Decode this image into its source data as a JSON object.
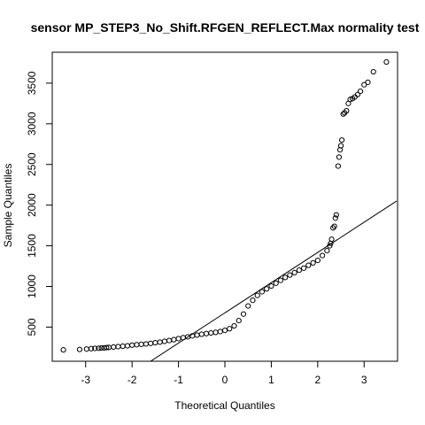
{
  "chart_data": {
    "type": "scatter",
    "title": "sensor MP_STEP3_No_Shift.RFGEN_REFLECT.Max normality test",
    "xlabel": "Theoretical Quantiles",
    "ylabel": "Sample Quantiles",
    "xlim": [
      -3.72,
      3.72
    ],
    "ylim": [
      80,
      3880
    ],
    "x_ticks": [
      -3,
      -2,
      -1,
      0,
      1,
      2,
      3
    ],
    "y_ticks": [
      500,
      1000,
      1500,
      2000,
      2500,
      3000,
      3500
    ],
    "grid": false,
    "legend": "none",
    "marker": "open-circle",
    "reference_line": {
      "type": "qqline",
      "points": [
        [
          -3.0,
          -440
        ],
        [
          3.7,
          2050
        ]
      ]
    },
    "series": [
      {
        "values": [
          [
            -3.48,
            220
          ],
          [
            -3.13,
            225
          ],
          [
            -2.98,
            230
          ],
          [
            -2.88,
            235
          ],
          [
            -2.8,
            238
          ],
          [
            -2.72,
            240
          ],
          [
            -2.66,
            243
          ],
          [
            -2.6,
            245
          ],
          [
            -2.55,
            248
          ],
          [
            -2.5,
            250
          ],
          [
            -2.4,
            255
          ],
          [
            -2.3,
            260
          ],
          [
            -2.2,
            265
          ],
          [
            -2.1,
            270
          ],
          [
            -2.0,
            278
          ],
          [
            -1.9,
            283
          ],
          [
            -1.8,
            288
          ],
          [
            -1.7,
            293
          ],
          [
            -1.6,
            300
          ],
          [
            -1.5,
            308
          ],
          [
            -1.4,
            315
          ],
          [
            -1.3,
            325
          ],
          [
            -1.2,
            335
          ],
          [
            -1.1,
            345
          ],
          [
            -1.0,
            358
          ],
          [
            -0.9,
            370
          ],
          [
            -0.8,
            380
          ],
          [
            -0.7,
            392
          ],
          [
            -0.6,
            402
          ],
          [
            -0.5,
            412
          ],
          [
            -0.4,
            420
          ],
          [
            -0.3,
            428
          ],
          [
            -0.2,
            435
          ],
          [
            -0.1,
            445
          ],
          [
            0.0,
            460
          ],
          [
            0.1,
            480
          ],
          [
            0.2,
            515
          ],
          [
            0.3,
            580
          ],
          [
            0.4,
            660
          ],
          [
            0.5,
            760
          ],
          [
            0.6,
            830
          ],
          [
            0.7,
            890
          ],
          [
            0.8,
            935
          ],
          [
            0.9,
            970
          ],
          [
            1.0,
            1005
          ],
          [
            1.1,
            1040
          ],
          [
            1.2,
            1075
          ],
          [
            1.3,
            1110
          ],
          [
            1.4,
            1140
          ],
          [
            1.5,
            1170
          ],
          [
            1.6,
            1200
          ],
          [
            1.7,
            1225
          ],
          [
            1.8,
            1260
          ],
          [
            1.9,
            1290
          ],
          [
            2.0,
            1320
          ],
          [
            2.1,
            1380
          ],
          [
            2.2,
            1440
          ],
          [
            2.26,
            1500
          ],
          [
            2.28,
            1530
          ],
          [
            2.3,
            1580
          ],
          [
            2.33,
            1720
          ],
          [
            2.36,
            1740
          ],
          [
            2.38,
            1840
          ],
          [
            2.4,
            1880
          ],
          [
            2.44,
            2480
          ],
          [
            2.46,
            2590
          ],
          [
            2.48,
            2680
          ],
          [
            2.5,
            2730
          ],
          [
            2.52,
            2800
          ],
          [
            2.55,
            3120
          ],
          [
            2.58,
            3135
          ],
          [
            2.62,
            3160
          ],
          [
            2.66,
            3250
          ],
          [
            2.7,
            3300
          ],
          [
            2.75,
            3310
          ],
          [
            2.8,
            3330
          ],
          [
            2.86,
            3360
          ],
          [
            2.92,
            3400
          ],
          [
            3.0,
            3480
          ],
          [
            3.08,
            3510
          ],
          [
            3.2,
            3640
          ],
          [
            3.48,
            3760
          ]
        ]
      }
    ]
  }
}
